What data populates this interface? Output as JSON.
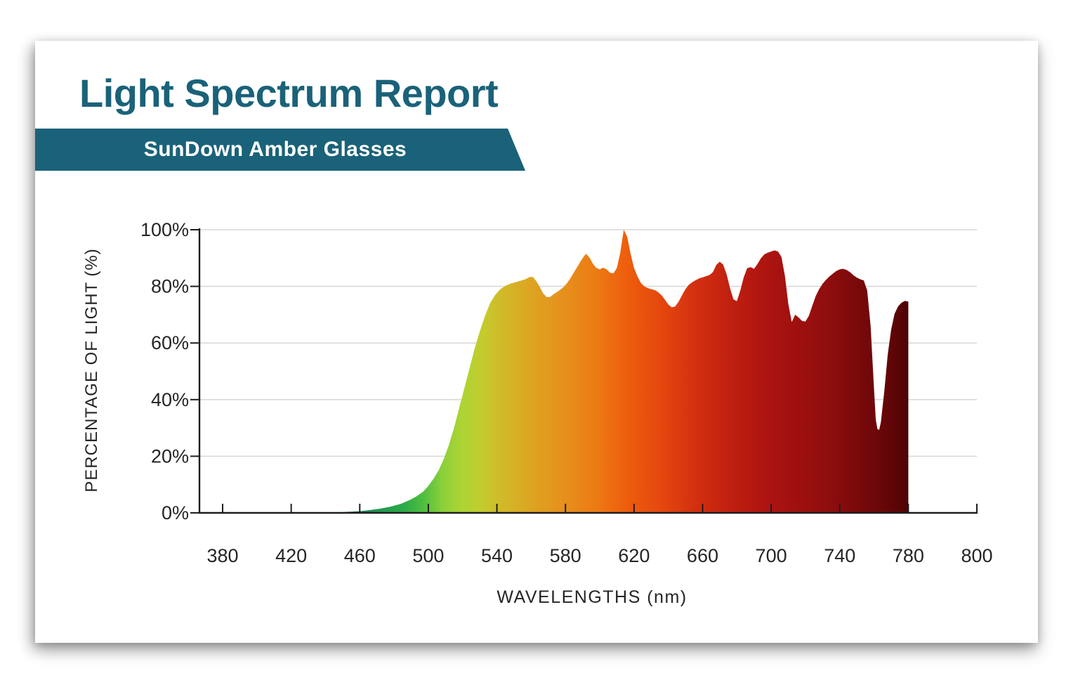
{
  "report": {
    "title": "Light Spectrum Report",
    "subtitle": "SunDown Amber Glasses"
  },
  "colors": {
    "accent_teal": "#1a6279",
    "banner_text": "#ffffff",
    "label_text": "#272425",
    "axis": "#1f1d1e",
    "gridline": "#d9d9d9",
    "card_bg": "#ffffff"
  },
  "chart_data": {
    "type": "area",
    "title": "Light Spectrum Report",
    "xlabel": "WAVELENGTHS (nm)",
    "ylabel": "PERCENTAGE OF LIGHT (%)",
    "ylim": [
      0,
      100
    ],
    "grid": true,
    "legend": false,
    "x_axis_type": "categorical-equal-spacing",
    "x_ticks": [
      {
        "value": 380,
        "label": "380"
      },
      {
        "value": 420,
        "label": "420"
      },
      {
        "value": 460,
        "label": "460"
      },
      {
        "value": 500,
        "label": "500"
      },
      {
        "value": 540,
        "label": "540"
      },
      {
        "value": 580,
        "label": "580"
      },
      {
        "value": 620,
        "label": "620"
      },
      {
        "value": 660,
        "label": "660"
      },
      {
        "value": 700,
        "label": "700"
      },
      {
        "value": 740,
        "label": "740"
      },
      {
        "value": 780,
        "label": "780"
      },
      {
        "value": 800,
        "label": "800"
      }
    ],
    "y_ticks": [
      {
        "value": 0,
        "label": "0%"
      },
      {
        "value": 20,
        "label": "20%"
      },
      {
        "value": 40,
        "label": "40%"
      },
      {
        "value": 60,
        "label": "60%"
      },
      {
        "value": 80,
        "label": "80%"
      },
      {
        "value": 100,
        "label": "100%"
      }
    ],
    "series": [
      {
        "name": "SunDown Amber Glasses",
        "points": [
          [
            440,
            0
          ],
          [
            447,
            0.2
          ],
          [
            454,
            0.4
          ],
          [
            460,
            0.6
          ],
          [
            466,
            1
          ],
          [
            472,
            1.5
          ],
          [
            478,
            2.2
          ],
          [
            484,
            3.2
          ],
          [
            489,
            4.5
          ],
          [
            493,
            5.8
          ],
          [
            497,
            7.5
          ],
          [
            500,
            9.5
          ],
          [
            503,
            12
          ],
          [
            506,
            15
          ],
          [
            509,
            19
          ],
          [
            512,
            24
          ],
          [
            515,
            30
          ],
          [
            518,
            37
          ],
          [
            521,
            44
          ],
          [
            524,
            51
          ],
          [
            527,
            58
          ],
          [
            530,
            64
          ],
          [
            533,
            69.5
          ],
          [
            536,
            74
          ],
          [
            539,
            77
          ],
          [
            542,
            79
          ],
          [
            545,
            80.2
          ],
          [
            548,
            81
          ],
          [
            551,
            81.5
          ],
          [
            554,
            82
          ],
          [
            557,
            82.6
          ],
          [
            559,
            83.3
          ],
          [
            561,
            83.3
          ],
          [
            563,
            81.8
          ],
          [
            565,
            79.8
          ],
          [
            567,
            77.5
          ],
          [
            569,
            76.2
          ],
          [
            571,
            76.2
          ],
          [
            573,
            77.2
          ],
          [
            575,
            78
          ],
          [
            577,
            78.8
          ],
          [
            579,
            79.8
          ],
          [
            581,
            81.2
          ],
          [
            583,
            83
          ],
          [
            585,
            85
          ],
          [
            587,
            87
          ],
          [
            589,
            89
          ],
          [
            591,
            90.8
          ],
          [
            592,
            91.5
          ],
          [
            594,
            90.2
          ],
          [
            596,
            88
          ],
          [
            598,
            86.5
          ],
          [
            600,
            86
          ],
          [
            602,
            86.6
          ],
          [
            604,
            86
          ],
          [
            606,
            84.8
          ],
          [
            608,
            84.6
          ],
          [
            610,
            86.5
          ],
          [
            612,
            92
          ],
          [
            614,
            100
          ],
          [
            616,
            97.5
          ],
          [
            618,
            91.5
          ],
          [
            620,
            86.5
          ],
          [
            622,
            83.5
          ],
          [
            624,
            81.2
          ],
          [
            626,
            80
          ],
          [
            628,
            79.4
          ],
          [
            630,
            79
          ],
          [
            632,
            78.7
          ],
          [
            634,
            78
          ],
          [
            636,
            76.9
          ],
          [
            638,
            75.3
          ],
          [
            640,
            73.6
          ],
          [
            642,
            72.6
          ],
          [
            644,
            72.9
          ],
          [
            646,
            74.6
          ],
          [
            648,
            76.9
          ],
          [
            650,
            79
          ],
          [
            652,
            80.6
          ],
          [
            654,
            81.5
          ],
          [
            656,
            82.2
          ],
          [
            658,
            82.8
          ],
          [
            660,
            83.2
          ],
          [
            662,
            83.6
          ],
          [
            664,
            84
          ],
          [
            666,
            85
          ],
          [
            668,
            87.6
          ],
          [
            670,
            88.7
          ],
          [
            672,
            87.7
          ],
          [
            674,
            84.3
          ],
          [
            676,
            79.4
          ],
          [
            678,
            75.4
          ],
          [
            680,
            74.8
          ],
          [
            682,
            78.6
          ],
          [
            684,
            83.2
          ],
          [
            686,
            86.4
          ],
          [
            688,
            86.8
          ],
          [
            690,
            86.2
          ],
          [
            692,
            87.9
          ],
          [
            694,
            89.9
          ],
          [
            696,
            91.3
          ],
          [
            698,
            91.9
          ],
          [
            700,
            92.3
          ],
          [
            702,
            92.7
          ],
          [
            704,
            92.3
          ],
          [
            706,
            90.4
          ],
          [
            708,
            83.8
          ],
          [
            710,
            73.8
          ],
          [
            712,
            67.4
          ],
          [
            714,
            70
          ],
          [
            716,
            69
          ],
          [
            718,
            67.8
          ],
          [
            720,
            67.6
          ],
          [
            722,
            69.6
          ],
          [
            724,
            73.2
          ],
          [
            726,
            76.6
          ],
          [
            728,
            79
          ],
          [
            730,
            80.9
          ],
          [
            732,
            82.3
          ],
          [
            734,
            83.5
          ],
          [
            736,
            84.5
          ],
          [
            738,
            85.4
          ],
          [
            740,
            86
          ],
          [
            742,
            86.2
          ],
          [
            744,
            85.8
          ],
          [
            746,
            85
          ],
          [
            748,
            83.9
          ],
          [
            750,
            83.1
          ],
          [
            752,
            82.5
          ],
          [
            754,
            82.1
          ],
          [
            756,
            78.6
          ],
          [
            758,
            66
          ],
          [
            760,
            44
          ],
          [
            761,
            33
          ],
          [
            762,
            29.6
          ],
          [
            763,
            29.3
          ],
          [
            764,
            32
          ],
          [
            766,
            43
          ],
          [
            768,
            56
          ],
          [
            770,
            64.8
          ],
          [
            772,
            70.3
          ],
          [
            774,
            72.9
          ],
          [
            776,
            74.2
          ],
          [
            778,
            74.9
          ],
          [
            780,
            74.6
          ]
        ]
      }
    ],
    "spectrum_gradient": [
      {
        "nm": 440,
        "color": "#14585a"
      },
      {
        "nm": 452,
        "color": "#166b58"
      },
      {
        "nm": 462,
        "color": "#1a8353"
      },
      {
        "nm": 474,
        "color": "#219c4d"
      },
      {
        "nm": 486,
        "color": "#2cab47"
      },
      {
        "nm": 497,
        "color": "#4fbe40"
      },
      {
        "nm": 508,
        "color": "#8ad039"
      },
      {
        "nm": 520,
        "color": "#aed434"
      },
      {
        "nm": 532,
        "color": "#c4cb2d"
      },
      {
        "nm": 544,
        "color": "#d2b827"
      },
      {
        "nm": 560,
        "color": "#dda422"
      },
      {
        "nm": 578,
        "color": "#e6911c"
      },
      {
        "nm": 598,
        "color": "#ec7a14"
      },
      {
        "nm": 616,
        "color": "#ee5d0d"
      },
      {
        "nm": 636,
        "color": "#e4470e"
      },
      {
        "nm": 656,
        "color": "#d33010"
      },
      {
        "nm": 676,
        "color": "#c02010"
      },
      {
        "nm": 696,
        "color": "#ae1410"
      },
      {
        "nm": 716,
        "color": "#9e100f"
      },
      {
        "nm": 736,
        "color": "#8c0d0d"
      },
      {
        "nm": 756,
        "color": "#73080a"
      },
      {
        "nm": 772,
        "color": "#5d0507"
      },
      {
        "nm": 780,
        "color": "#4e0405"
      }
    ]
  }
}
